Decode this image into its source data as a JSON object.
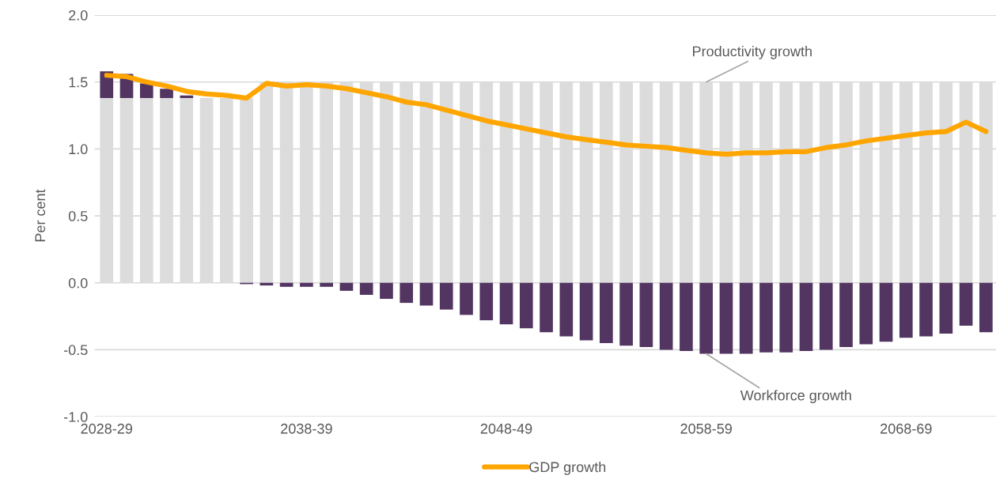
{
  "chart_data": {
    "type": "bar",
    "stacked": true,
    "ylabel": "Per cent",
    "categories": [
      "2028-29",
      null,
      null,
      null,
      null,
      null,
      null,
      null,
      null,
      null,
      "2038-39",
      null,
      null,
      null,
      null,
      null,
      null,
      null,
      null,
      null,
      "2048-49",
      null,
      null,
      null,
      null,
      null,
      null,
      null,
      null,
      null,
      "2058-59",
      null,
      null,
      null,
      null,
      null,
      null,
      null,
      null,
      null,
      "2068-69",
      null,
      null,
      null,
      null
    ],
    "series": [
      {
        "name": "Productivity growth",
        "color": "#dcdcdc",
        "values": [
          1.38,
          1.38,
          1.38,
          1.38,
          1.38,
          1.38,
          1.38,
          1.38,
          1.5,
          1.5,
          1.5,
          1.5,
          1.5,
          1.5,
          1.5,
          1.5,
          1.5,
          1.5,
          1.5,
          1.5,
          1.5,
          1.5,
          1.5,
          1.5,
          1.5,
          1.5,
          1.5,
          1.5,
          1.5,
          1.5,
          1.5,
          1.5,
          1.5,
          1.5,
          1.5,
          1.5,
          1.5,
          1.5,
          1.5,
          1.5,
          1.5,
          1.5,
          1.5,
          1.5,
          1.5
        ]
      },
      {
        "name": "Workforce growth",
        "color": "#533562",
        "values": [
          0.2,
          0.18,
          0.11,
          0.07,
          0.02,
          0,
          0,
          -0.01,
          -0.02,
          -0.03,
          -0.03,
          -0.03,
          -0.06,
          -0.09,
          -0.12,
          -0.15,
          -0.17,
          -0.2,
          -0.24,
          -0.28,
          -0.31,
          -0.34,
          -0.37,
          -0.4,
          -0.43,
          -0.45,
          -0.47,
          -0.48,
          -0.5,
          -0.51,
          -0.53,
          -0.53,
          -0.53,
          -0.52,
          -0.52,
          -0.51,
          -0.5,
          -0.48,
          -0.46,
          -0.44,
          -0.41,
          -0.4,
          -0.38,
          -0.32,
          -0.37
        ]
      },
      {
        "name": "GDP growth",
        "type": "line",
        "color": "#ffa500",
        "values": [
          1.55,
          1.54,
          1.5,
          1.47,
          1.43,
          1.41,
          1.4,
          1.38,
          1.49,
          1.47,
          1.48,
          1.47,
          1.45,
          1.42,
          1.39,
          1.35,
          1.33,
          1.29,
          1.25,
          1.21,
          1.18,
          1.15,
          1.12,
          1.09,
          1.07,
          1.05,
          1.03,
          1.02,
          1.01,
          0.99,
          0.97,
          0.96,
          0.97,
          0.97,
          0.98,
          0.98,
          1.01,
          1.03,
          1.06,
          1.08,
          1.1,
          1.12,
          1.13,
          1.2,
          1.13
        ]
      }
    ],
    "ylim": [
      -1,
      2
    ],
    "yticks": [
      {
        "value": -1,
        "label": "-1.0"
      },
      {
        "value": -0.5,
        "label": "-0.5"
      },
      {
        "value": 0,
        "label": "0.0"
      },
      {
        "value": 0.5,
        "label": "0.5"
      },
      {
        "value": 1,
        "label": "1.0"
      },
      {
        "value": 1.5,
        "label": "1.5"
      },
      {
        "value": 2,
        "label": "2.0"
      }
    ],
    "grid": "y",
    "legend": "bottom"
  }
}
